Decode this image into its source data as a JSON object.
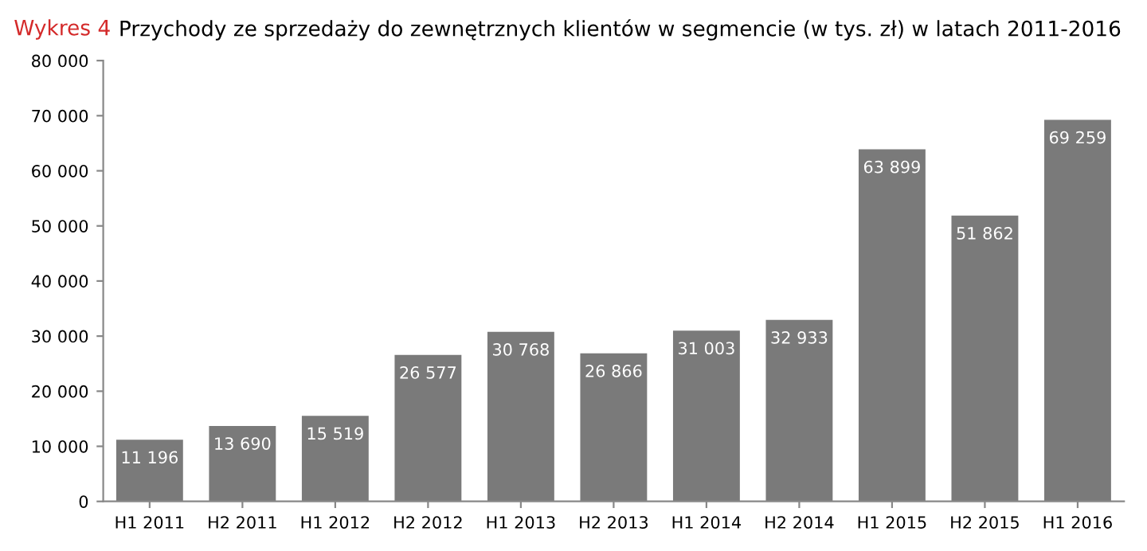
{
  "chart_data": {
    "type": "bar",
    "title": "Wykres 4",
    "subtitle": "Przychody ze sprzedaży do zewnętrznych klientów w segmencie (w tys. zł) w latach 2011-2016",
    "categories": [
      "H1 2011",
      "H2 2011",
      "H1 2012",
      "H2 2012",
      "H1 2013",
      "H2 2013",
      "H1 2014",
      "H2 2014",
      "H1 2015",
      "H2 2015",
      "H1 2016"
    ],
    "values": [
      11196,
      13690,
      15519,
      26577,
      30768,
      26866,
      31003,
      32933,
      63899,
      51862,
      69259
    ],
    "value_labels": [
      "11 196",
      "13 690",
      "15 519",
      "26 577",
      "30 768",
      "26 866",
      "31 003",
      "32 933",
      "63 899",
      "51 862",
      "69 259"
    ],
    "color": "#7a7a7a",
    "ylim": [
      0,
      80000
    ],
    "yticks": [
      0,
      {
        "value": 10000,
        "label": "10 000"
      },
      {
        "value": 20000,
        "label": "20 000"
      },
      {
        "value": 30000,
        "label": "30 000"
      },
      {
        "value": 40000,
        "label": "40 000"
      },
      {
        "value": 50000,
        "label": "50 000"
      },
      {
        "value": 60000,
        "label": "60 000"
      },
      {
        "value": 70000,
        "label": "70 000"
      },
      {
        "value": 80000,
        "label": "80 000"
      }
    ],
    "grid": false,
    "legend": false
  }
}
